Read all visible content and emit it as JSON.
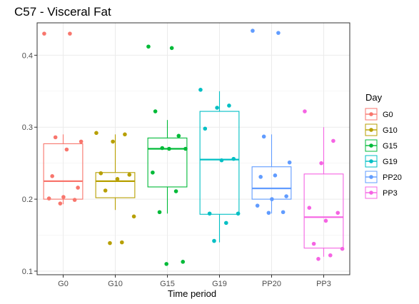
{
  "chart_data": {
    "type": "boxplot",
    "title": "C57 - Visceral Fat",
    "xlabel": "Time period",
    "ylabel": "",
    "ylim": [
      0.095,
      0.445
    ],
    "yticks": [
      0.1,
      0.2,
      0.3,
      0.4
    ],
    "ytick_labels": [
      "0.1",
      "0.2",
      "0.3",
      "0.4"
    ],
    "grid": true,
    "legend": {
      "title": "Day",
      "placement": "right"
    },
    "categories": [
      "G0",
      "G10",
      "G15",
      "G19",
      "PP20",
      "PP3"
    ],
    "series": [
      {
        "name": "G0",
        "color": "#F8766D",
        "box": {
          "q1": 0.2,
          "median": 0.225,
          "q3": 0.277,
          "whisker_low": 0.193,
          "whisker_high": 0.29
        },
        "points": [
          0.43,
          0.43,
          0.286,
          0.28,
          0.269,
          0.232,
          0.216,
          0.203,
          0.201,
          0.199,
          0.194
        ]
      },
      {
        "name": "G10",
        "color": "#B79F00",
        "box": {
          "q1": 0.202,
          "median": 0.225,
          "q3": 0.237,
          "whisker_low": 0.185,
          "whisker_high": 0.29
        },
        "points": [
          0.292,
          0.29,
          0.28,
          0.236,
          0.234,
          0.228,
          0.212,
          0.176,
          0.14,
          0.139
        ]
      },
      {
        "name": "G15",
        "color": "#00BA38",
        "box": {
          "q1": 0.217,
          "median": 0.27,
          "q3": 0.285,
          "whisker_low": 0.18,
          "whisker_high": 0.31
        },
        "points": [
          0.412,
          0.41,
          0.322,
          0.288,
          0.271,
          0.27,
          0.27,
          0.237,
          0.211,
          0.182,
          0.113,
          0.11
        ]
      },
      {
        "name": "G19",
        "color": "#00BFC4",
        "box": {
          "q1": 0.179,
          "median": 0.255,
          "q3": 0.322,
          "whisker_low": 0.14,
          "whisker_high": 0.35
        },
        "points": [
          0.352,
          0.33,
          0.327,
          0.298,
          0.256,
          0.254,
          0.18,
          0.18,
          0.167,
          0.142
        ]
      },
      {
        "name": "PP20",
        "color": "#619CFF",
        "box": {
          "q1": 0.2,
          "median": 0.215,
          "q3": 0.245,
          "whisker_low": 0.18,
          "whisker_high": 0.29
        },
        "points": [
          0.434,
          0.431,
          0.287,
          0.251,
          0.233,
          0.231,
          0.204,
          0.2,
          0.191,
          0.182,
          0.181
        ]
      },
      {
        "name": "PP3",
        "color": "#F564E3",
        "box": {
          "q1": 0.132,
          "median": 0.175,
          "q3": 0.235,
          "whisker_low": 0.12,
          "whisker_high": 0.3
        },
        "points": [
          0.322,
          0.281,
          0.25,
          0.188,
          0.181,
          0.17,
          0.138,
          0.131,
          0.122,
          0.117
        ]
      }
    ]
  }
}
